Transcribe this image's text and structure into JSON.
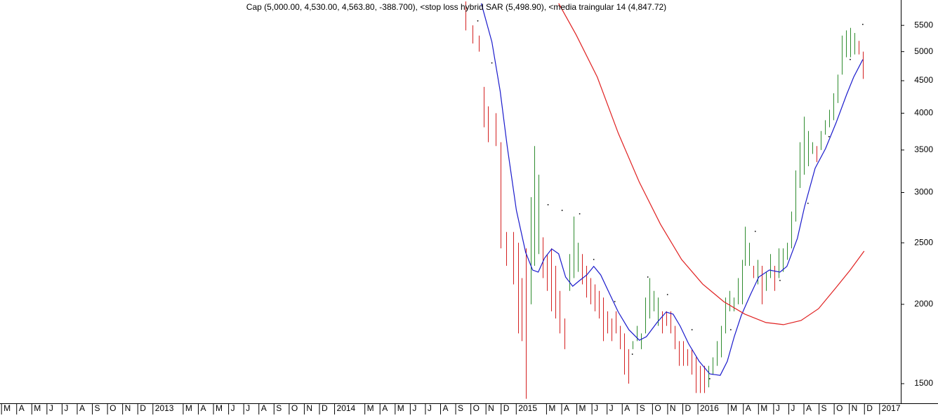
{
  "chart_data": {
    "type": "range",
    "title": "Cap (5,000.00, 4,530.00, 4,563.80, -388.700), <stop loss hybrid SAR (5,498.90), <media traingular 14 (4,847.72)",
    "log_scale": true,
    "xlim": [
      -0.1,
      59.4
    ],
    "ylim": [
      1397,
      6030
    ],
    "yticks": [
      1500,
      2000,
      2500,
      3000,
      3500,
      4000,
      4500,
      5000,
      5500
    ],
    "xticks": [
      {
        "value": 0,
        "label": "M"
      },
      {
        "value": 1,
        "label": "A"
      },
      {
        "value": 2,
        "label": "M"
      },
      {
        "value": 3,
        "label": "J"
      },
      {
        "value": 4,
        "label": "J"
      },
      {
        "value": 5,
        "label": "A"
      },
      {
        "value": 6,
        "label": "S"
      },
      {
        "value": 7,
        "label": "O"
      },
      {
        "value": 8,
        "label": "N"
      },
      {
        "value": 9,
        "label": "D"
      },
      {
        "value": 10,
        "label": "2013"
      },
      {
        "value": 12,
        "label": "M"
      },
      {
        "value": 13,
        "label": "A"
      },
      {
        "value": 14,
        "label": "M"
      },
      {
        "value": 15,
        "label": "J"
      },
      {
        "value": 16,
        "label": "J"
      },
      {
        "value": 17,
        "label": "A"
      },
      {
        "value": 18,
        "label": "S"
      },
      {
        "value": 19,
        "label": "O"
      },
      {
        "value": 20,
        "label": "N"
      },
      {
        "value": 21,
        "label": "D"
      },
      {
        "value": 22,
        "label": "2014"
      },
      {
        "value": 24,
        "label": "M"
      },
      {
        "value": 25,
        "label": "A"
      },
      {
        "value": 26,
        "label": "M"
      },
      {
        "value": 27,
        "label": "J"
      },
      {
        "value": 28,
        "label": "J"
      },
      {
        "value": 29,
        "label": "A"
      },
      {
        "value": 30,
        "label": "S"
      },
      {
        "value": 31,
        "label": "O"
      },
      {
        "value": 32,
        "label": "N"
      },
      {
        "value": 33,
        "label": "D"
      },
      {
        "value": 34,
        "label": "2015"
      },
      {
        "value": 36,
        "label": "M"
      },
      {
        "value": 37,
        "label": "A"
      },
      {
        "value": 38,
        "label": "M"
      },
      {
        "value": 39,
        "label": "J"
      },
      {
        "value": 40,
        "label": "J"
      },
      {
        "value": 41,
        "label": "A"
      },
      {
        "value": 42,
        "label": "S"
      },
      {
        "value": 43,
        "label": "O"
      },
      {
        "value": 44,
        "label": "N"
      },
      {
        "value": 45,
        "label": "D"
      },
      {
        "value": 46,
        "label": "2016"
      },
      {
        "value": 48,
        "label": "M"
      },
      {
        "value": 49,
        "label": "A"
      },
      {
        "value": 50,
        "label": "M"
      },
      {
        "value": 51,
        "label": "J"
      },
      {
        "value": 52,
        "label": "J"
      },
      {
        "value": 53,
        "label": "A"
      },
      {
        "value": 54,
        "label": "S"
      },
      {
        "value": 55,
        "label": "O"
      },
      {
        "value": 56,
        "label": "N"
      },
      {
        "value": 57,
        "label": "D"
      },
      {
        "value": 58,
        "label": "2017"
      }
    ],
    "bars": [
      {
        "color": "#d42020",
        "x": [
          30.63,
          31.09,
          31.55,
          31.83,
          32.11,
          32.62,
          32.95,
          33.32,
          33.78,
          34.11,
          34.34,
          34.62,
          35.73,
          36.01,
          36.29,
          36.57,
          36.84,
          37.17,
          38.33,
          38.61,
          38.89,
          39.17,
          39.44,
          39.72,
          40.0,
          40.28,
          40.56,
          40.84,
          41.11,
          41.39,
          43.62,
          43.9,
          44.18,
          44.45,
          44.73,
          45.01,
          45.29,
          45.57,
          45.85,
          46.13,
          46.4,
          49.65,
          50.21,
          51.04,
          53.83,
          56.61,
          56.89
        ],
        "high": [
          6000,
          5500,
          5300,
          4400,
          4100,
          4000,
          3600,
          2600,
          2600,
          2500,
          2200,
          2450,
          2550,
          2400,
          2450,
          2300,
          2100,
          1900,
          2400,
          2300,
          2200,
          2150,
          2100,
          2050,
          1950,
          1900,
          1950,
          1850,
          1800,
          1700,
          1950,
          1950,
          1950,
          1850,
          1750,
          1750,
          1700,
          1700,
          1650,
          1600,
          1600,
          2300,
          2300,
          2300,
          3550,
          5200,
          5000
        ],
        "low": [
          5400,
          5150,
          5000,
          3800,
          3600,
          3550,
          2450,
          2300,
          2150,
          1800,
          1750,
          1420,
          2200,
          2100,
          1950,
          1900,
          1800,
          1700,
          2150,
          2050,
          2000,
          1950,
          1900,
          1750,
          1800,
          1750,
          1800,
          1700,
          1550,
          1500,
          1800,
          1850,
          1800,
          1700,
          1600,
          1600,
          1600,
          1550,
          1450,
          1450,
          1450,
          2200,
          2000,
          2100,
          3350,
          4950,
          4530
        ]
      },
      {
        "color": "#2e8b2e",
        "x": [
          34.94,
          35.17,
          35.45,
          37.49,
          37.77,
          38.05,
          41.67,
          41.95,
          42.23,
          42.51,
          42.78,
          43.06,
          43.34,
          46.68,
          46.96,
          47.24,
          47.52,
          47.8,
          48.07,
          48.35,
          48.63,
          48.91,
          49.1,
          49.37,
          49.93,
          50.49,
          50.77,
          51.32,
          51.6,
          51.88,
          52.16,
          52.44,
          52.71,
          52.99,
          53.27,
          53.55,
          54.11,
          54.38,
          54.66,
          54.94,
          55.22,
          55.5,
          55.78,
          56.06,
          56.33
        ],
        "high": [
          2950,
          3550,
          3200,
          2400,
          2750,
          2500,
          1750,
          1850,
          1800,
          2050,
          2200,
          2100,
          2050,
          1600,
          1650,
          1750,
          1850,
          2050,
          2100,
          2050,
          2200,
          2350,
          2650,
          2500,
          2350,
          2250,
          2400,
          2450,
          2450,
          2500,
          2800,
          3250,
          3600,
          3950,
          3750,
          3600,
          3750,
          3900,
          4050,
          4300,
          4600,
          5300,
          5400,
          5450,
          5350
        ],
        "low": [
          2000,
          2300,
          2400,
          2100,
          2200,
          2250,
          1700,
          1750,
          1700,
          1800,
          1900,
          1950,
          1850,
          1480,
          1550,
          1600,
          1650,
          1800,
          1950,
          1950,
          2000,
          2000,
          2300,
          2300,
          2150,
          2100,
          2200,
          2200,
          2250,
          2350,
          2450,
          2700,
          3050,
          3200,
          3300,
          3450,
          3500,
          3700,
          3800,
          3900,
          4150,
          4600,
          4900,
          4900,
          4950
        ]
      }
    ],
    "lines": [
      {
        "color": "#1a1acc",
        "x": [
          31.69,
          32.39,
          32.94,
          33.41,
          34.01,
          34.62,
          35.08,
          35.45,
          35.87,
          36.34,
          36.8,
          37.26,
          37.73,
          38.19,
          38.66,
          39.12,
          39.58,
          40.19,
          40.74,
          41.44,
          42.13,
          42.6,
          43.3,
          43.9,
          44.36,
          44.83,
          45.38,
          46.08,
          46.78,
          47.47,
          47.94,
          48.4,
          48.86,
          49.47,
          50.02,
          50.72,
          51.42,
          51.88,
          52.57,
          53.04,
          53.74,
          54.43,
          55.13,
          55.82,
          56.29,
          56.89
        ],
        "values": [
          5957,
          5180,
          4334,
          3536,
          2812,
          2414,
          2265,
          2248,
          2365,
          2445,
          2402,
          2208,
          2136,
          2181,
          2225,
          2295,
          2225,
          2072,
          1945,
          1824,
          1756,
          1779,
          1872,
          1945,
          1930,
          1848,
          1734,
          1627,
          1554,
          1546,
          1627,
          1779,
          1920,
          2072,
          2208,
          2265,
          2248,
          2295,
          2540,
          2848,
          3276,
          3518,
          3865,
          4279,
          4560,
          4860
        ]
      },
      {
        "color": "#e02020",
        "x": [
          36.8,
          37.96,
          39.35,
          40.74,
          42.13,
          43.53,
          44.92,
          46.31,
          47.7,
          49.1,
          50.49,
          51.65,
          52.81,
          53.97,
          55.13,
          56.06,
          56.98
        ],
        "values": [
          5957,
          5313,
          4560,
          3720,
          3114,
          2673,
          2353,
          2153,
          2020,
          1930,
          1872,
          1858,
          1886,
          1969,
          2126,
          2265,
          2426
        ]
      }
    ],
    "sar": {
      "color": "#000000",
      "x": [
        31.46,
        32.39,
        36.1,
        37.03,
        38.19,
        39.12,
        40.51,
        41.67,
        42.69,
        43.99,
        45.61,
        46.78,
        48.17,
        49.79,
        51.42,
        53.27,
        54.66,
        56.06,
        56.89
      ],
      "values": [
        5590,
        4799,
        2870,
        2812,
        2777,
        2353,
        2020,
        1669,
        2208,
        2072,
        1824,
        1527,
        1824,
        2606,
        2181,
        2885,
        3674,
        4860,
        5520
      ]
    }
  }
}
